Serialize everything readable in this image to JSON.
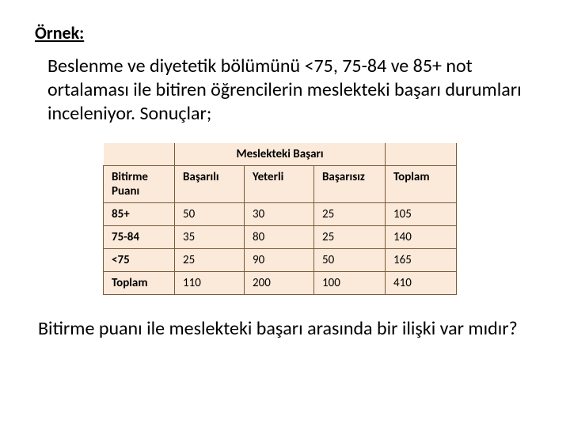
{
  "heading": "Örnek:",
  "intro": "Beslenme ve diyetetik bölümünü <75, 75-84 ve 85+ not ortalaması ile bitiren öğrencilerin meslekteki başarı durumları inceleniyor. Sonuçlar;",
  "table": {
    "span_header": "Meslekteki Başarı",
    "row_header_label": "Bitirme Puanı",
    "col_headers": [
      "Başarılı",
      "Yeterli",
      "Başarısız",
      "Toplam"
    ],
    "rows": [
      {
        "label": "85+",
        "cells": [
          "50",
          "30",
          "25",
          "105"
        ]
      },
      {
        "label": "75-84",
        "cells": [
          "35",
          "80",
          "25",
          "140"
        ]
      },
      {
        "label": "<75",
        "cells": [
          "25",
          "90",
          "50",
          "165"
        ]
      },
      {
        "label": "Toplam",
        "cells": [
          "110",
          "200",
          "100",
          "410"
        ]
      }
    ],
    "header_bg": "#fbe9d9",
    "cell_bg": "#fbe9d9",
    "border_color": "#7a5a3a",
    "font_size": 15
  },
  "footer": "Bitirme puanı ile meslekteki başarı arasında bir ilişki var mıdır?",
  "page_bg": "#ffffff",
  "text_color": "#000000"
}
